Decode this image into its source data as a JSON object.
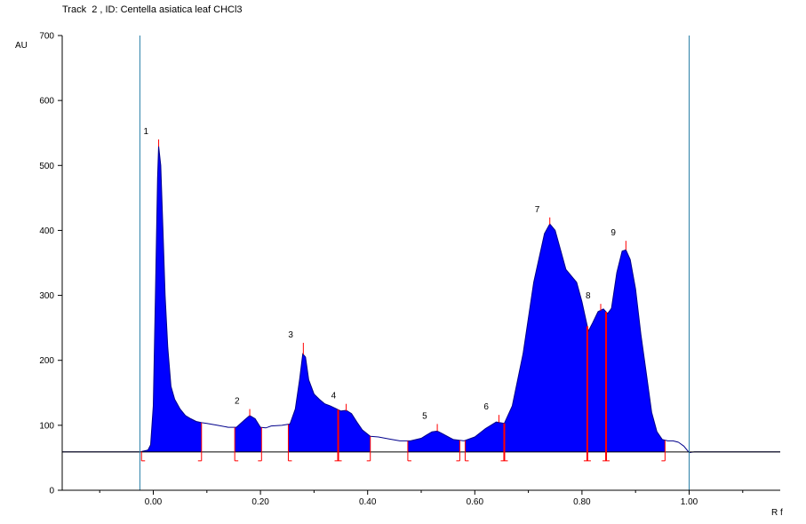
{
  "chart_data": {
    "type": "area",
    "title": "Track  2 , ID: Centella asiatica leaf CHCl3",
    "ylabel": "AU",
    "xlabel": "R f",
    "xlim": [
      -0.17,
      1.17
    ],
    "ylim": [
      0,
      700
    ],
    "x_ticks": [
      "0.00",
      "0.20",
      "0.40",
      "0.60",
      "0.80",
      "1.00"
    ],
    "x_tick_values": [
      0.0,
      0.2,
      0.4,
      0.6,
      0.8,
      1.0
    ],
    "y_ticks": [
      "0",
      "100",
      "200",
      "300",
      "400",
      "500",
      "600",
      "700"
    ],
    "y_tick_values": [
      0,
      100,
      200,
      300,
      400,
      500,
      600,
      700
    ],
    "baseline": 59,
    "start_line_rf": -0.025,
    "front_line_rf": 1.0,
    "colors": {
      "fill": "#0000ff",
      "marker": "#ff0000",
      "limit_line": "#2a7fa8",
      "curve": "#00008b"
    },
    "profile": [
      [
        -0.17,
        59
      ],
      [
        -0.025,
        59
      ],
      [
        -0.02,
        60
      ],
      [
        -0.01,
        62
      ],
      [
        -0.005,
        70
      ],
      [
        0.0,
        130
      ],
      [
        0.004,
        300
      ],
      [
        0.008,
        480
      ],
      [
        0.01,
        530
      ],
      [
        0.014,
        500
      ],
      [
        0.018,
        400
      ],
      [
        0.022,
        300
      ],
      [
        0.027,
        220
      ],
      [
        0.033,
        160
      ],
      [
        0.04,
        140
      ],
      [
        0.05,
        125
      ],
      [
        0.06,
        115
      ],
      [
        0.07,
        110
      ],
      [
        0.08,
        106
      ],
      [
        0.09,
        104
      ],
      [
        0.1,
        103
      ],
      [
        0.12,
        100
      ],
      [
        0.14,
        97
      ],
      [
        0.155,
        97
      ],
      [
        0.17,
        108
      ],
      [
        0.18,
        115
      ],
      [
        0.19,
        110
      ],
      [
        0.2,
        97
      ],
      [
        0.21,
        96
      ],
      [
        0.22,
        99
      ],
      [
        0.24,
        100
      ],
      [
        0.255,
        102
      ],
      [
        0.265,
        125
      ],
      [
        0.273,
        170
      ],
      [
        0.279,
        210
      ],
      [
        0.284,
        205
      ],
      [
        0.29,
        170
      ],
      [
        0.3,
        148
      ],
      [
        0.31,
        140
      ],
      [
        0.32,
        133
      ],
      [
        0.33,
        130
      ],
      [
        0.34,
        126
      ],
      [
        0.35,
        122
      ],
      [
        0.36,
        123
      ],
      [
        0.37,
        118
      ],
      [
        0.38,
        105
      ],
      [
        0.39,
        93
      ],
      [
        0.405,
        83
      ],
      [
        0.42,
        82
      ],
      [
        0.44,
        79
      ],
      [
        0.46,
        76
      ],
      [
        0.48,
        76
      ],
      [
        0.5,
        80
      ],
      [
        0.51,
        85
      ],
      [
        0.52,
        90
      ],
      [
        0.53,
        91
      ],
      [
        0.54,
        87
      ],
      [
        0.56,
        78
      ],
      [
        0.58,
        76
      ],
      [
        0.6,
        82
      ],
      [
        0.62,
        95
      ],
      [
        0.64,
        105
      ],
      [
        0.655,
        103
      ],
      [
        0.67,
        130
      ],
      [
        0.69,
        210
      ],
      [
        0.71,
        320
      ],
      [
        0.73,
        395
      ],
      [
        0.74,
        410
      ],
      [
        0.75,
        400
      ],
      [
        0.76,
        370
      ],
      [
        0.77,
        340
      ],
      [
        0.78,
        330
      ],
      [
        0.79,
        320
      ],
      [
        0.8,
        290
      ],
      [
        0.812,
        245
      ],
      [
        0.82,
        258
      ],
      [
        0.83,
        275
      ],
      [
        0.84,
        279
      ],
      [
        0.848,
        272
      ],
      [
        0.855,
        280
      ],
      [
        0.865,
        335
      ],
      [
        0.875,
        368
      ],
      [
        0.882,
        370
      ],
      [
        0.89,
        355
      ],
      [
        0.9,
        310
      ],
      [
        0.91,
        240
      ],
      [
        0.92,
        180
      ],
      [
        0.93,
        120
      ],
      [
        0.94,
        90
      ],
      [
        0.95,
        78
      ],
      [
        0.96,
        76
      ],
      [
        0.97,
        76
      ],
      [
        0.98,
        74
      ],
      [
        0.99,
        68
      ],
      [
        1.0,
        58
      ],
      [
        1.01,
        59
      ],
      [
        1.17,
        59
      ]
    ],
    "shaded_regions": [
      [
        -0.022,
        0.09
      ],
      [
        0.152,
        0.202
      ],
      [
        0.252,
        0.405
      ],
      [
        0.475,
        0.572
      ],
      [
        0.582,
        0.81
      ],
      [
        0.81,
        0.955
      ]
    ],
    "peaks": [
      {
        "label": "1",
        "rf": 0.01,
        "au": 540
      },
      {
        "label": "2",
        "rf": 0.18,
        "au": 125
      },
      {
        "label": "3",
        "rf": 0.28,
        "au": 227
      },
      {
        "label": "4",
        "rf": 0.36,
        "au": 133
      },
      {
        "label": "5",
        "rf": 0.53,
        "au": 102
      },
      {
        "label": "6",
        "rf": 0.645,
        "au": 116
      },
      {
        "label": "7",
        "rf": 0.74,
        "au": 420
      },
      {
        "label": "8",
        "rf": 0.835,
        "au": 287
      },
      {
        "label": "9",
        "rf": 0.882,
        "au": 384
      }
    ],
    "boundary_markers": [
      {
        "rf": -0.022,
        "type": "start"
      },
      {
        "rf": 0.09,
        "type": "end"
      },
      {
        "rf": 0.152,
        "type": "start"
      },
      {
        "rf": 0.202,
        "type": "end"
      },
      {
        "rf": 0.252,
        "type": "start"
      },
      {
        "rf": 0.345,
        "type": "split"
      },
      {
        "rf": 0.405,
        "type": "end"
      },
      {
        "rf": 0.475,
        "type": "start"
      },
      {
        "rf": 0.572,
        "type": "end"
      },
      {
        "rf": 0.582,
        "type": "start"
      },
      {
        "rf": 0.655,
        "type": "split"
      },
      {
        "rf": 0.81,
        "type": "split"
      },
      {
        "rf": 0.845,
        "type": "split"
      },
      {
        "rf": 0.955,
        "type": "end"
      }
    ]
  }
}
